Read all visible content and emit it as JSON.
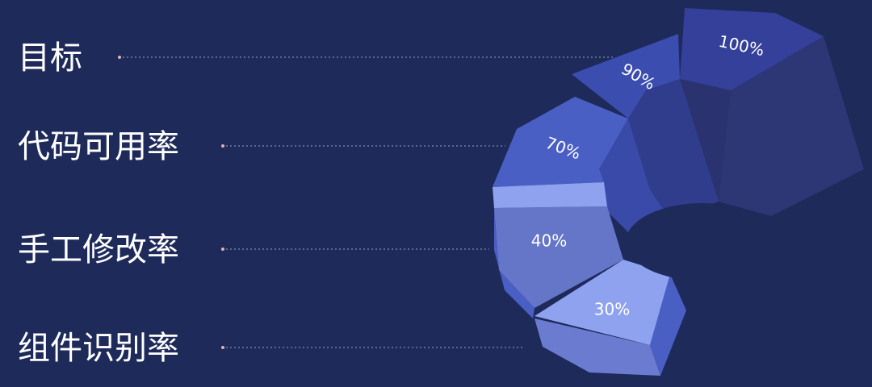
{
  "rows": [
    {
      "label": "目标"
    },
    {
      "label": "代码可用率"
    },
    {
      "label": "手工修改率"
    },
    {
      "label": "组件识别率"
    }
  ],
  "segments": [
    {
      "label": "100%"
    },
    {
      "label": "90%"
    },
    {
      "label": "70%"
    },
    {
      "label": "40%"
    },
    {
      "label": "30%"
    }
  ]
}
